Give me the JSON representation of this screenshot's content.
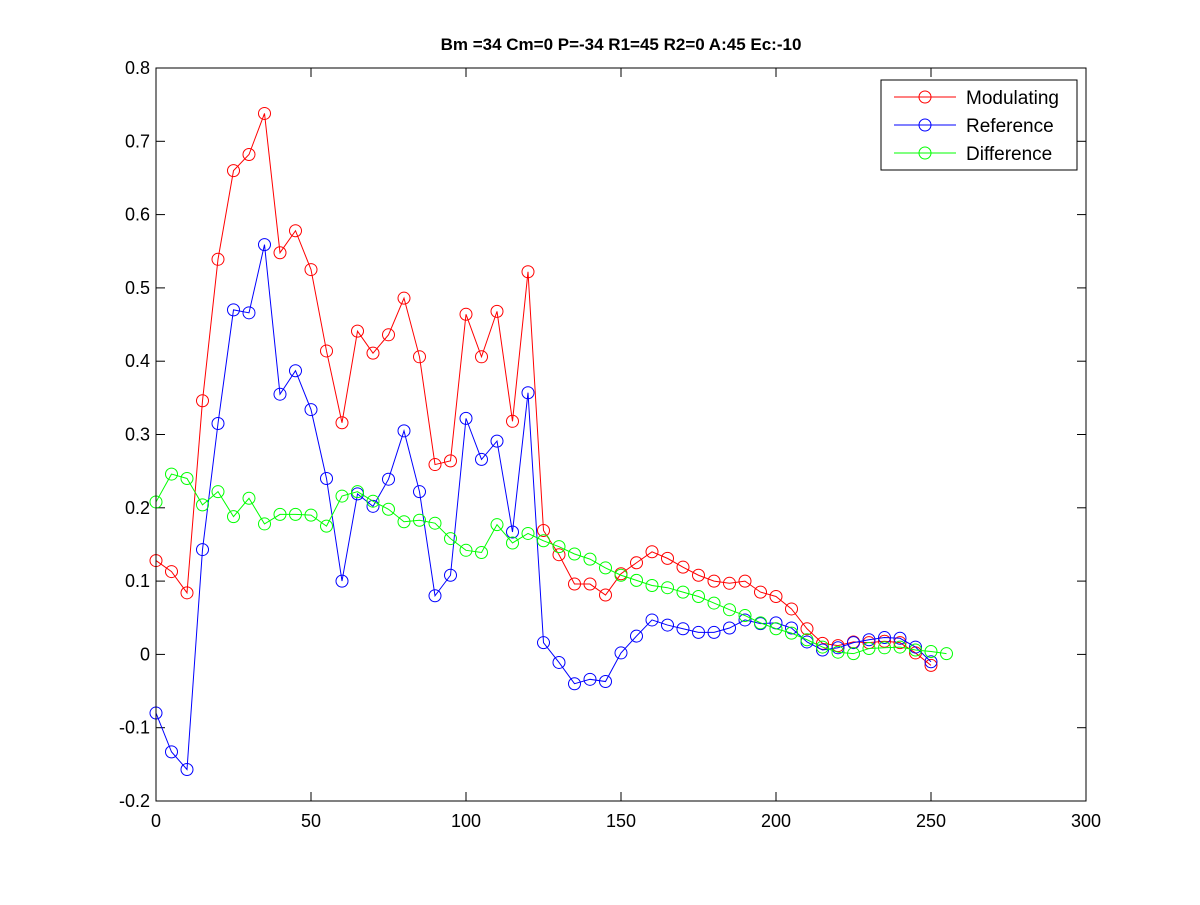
{
  "chart_data": {
    "type": "line",
    "title": "Bm =34  Cm=0  P=-34  R1=45  R2=0  A:45  Ec:-10",
    "xlabel": "",
    "ylabel": "",
    "xlim": [
      0,
      300
    ],
    "ylim": [
      -0.2,
      0.8
    ],
    "x_ticks": [
      0,
      50,
      100,
      150,
      200,
      250,
      300
    ],
    "y_ticks": [
      -0.2,
      -0.1,
      0,
      0.1,
      0.2,
      0.3,
      0.4,
      0.5,
      0.6,
      0.7,
      0.8
    ],
    "x_tick_labels": [
      "0",
      "50",
      "100",
      "150",
      "200",
      "250",
      "300"
    ],
    "y_tick_labels": [
      "-0.2",
      "-0.1",
      "0",
      "0.1",
      "0.2",
      "0.3",
      "0.4",
      "0.5",
      "0.6",
      "0.7",
      "0.8"
    ],
    "grid": false,
    "legend_position": "top-right",
    "marker": "circle",
    "series": [
      {
        "name": "Modulating",
        "color": "#ff0000",
        "x": [
          0,
          5,
          10,
          15,
          20,
          25,
          30,
          35,
          40,
          45,
          50,
          55,
          60,
          65,
          70,
          75,
          80,
          85,
          90,
          95,
          100,
          105,
          110,
          115,
          120,
          125,
          130,
          135,
          140,
          145,
          150,
          155,
          160,
          165,
          170,
          175,
          180,
          185,
          190,
          195,
          200,
          205,
          210,
          215,
          220,
          225,
          230,
          235,
          240,
          245,
          250
        ],
        "y": [
          0.128,
          0.113,
          0.084,
          0.346,
          0.539,
          0.66,
          0.682,
          0.738,
          0.548,
          0.578,
          0.525,
          0.414,
          0.316,
          0.441,
          0.411,
          0.436,
          0.486,
          0.406,
          0.259,
          0.264,
          0.464,
          0.406,
          0.468,
          0.318,
          0.522,
          0.169,
          0.136,
          0.096,
          0.096,
          0.081,
          0.11,
          0.125,
          0.14,
          0.131,
          0.119,
          0.108,
          0.1,
          0.097,
          0.1,
          0.085,
          0.079,
          0.062,
          0.035,
          0.015,
          0.012,
          0.017,
          0.016,
          0.018,
          0.016,
          0.002,
          -0.015
        ]
      },
      {
        "name": "Reference",
        "color": "#0000ff",
        "x": [
          0,
          5,
          10,
          15,
          20,
          25,
          30,
          35,
          40,
          45,
          50,
          55,
          60,
          65,
          70,
          75,
          80,
          85,
          90,
          95,
          100,
          105,
          110,
          115,
          120,
          125,
          130,
          135,
          140,
          145,
          150,
          155,
          160,
          165,
          170,
          175,
          180,
          185,
          190,
          195,
          200,
          205,
          210,
          215,
          220,
          225,
          230,
          235,
          240,
          245,
          250
        ],
        "y": [
          -0.08,
          -0.133,
          -0.157,
          0.143,
          0.315,
          0.47,
          0.466,
          0.559,
          0.355,
          0.387,
          0.334,
          0.24,
          0.1,
          0.219,
          0.202,
          0.239,
          0.305,
          0.222,
          0.08,
          0.108,
          0.322,
          0.266,
          0.291,
          0.167,
          0.357,
          0.016,
          -0.011,
          -0.04,
          -0.034,
          -0.037,
          0.002,
          0.025,
          0.047,
          0.04,
          0.035,
          0.03,
          0.03,
          0.036,
          0.047,
          0.042,
          0.043,
          0.036,
          0.017,
          0.006,
          0.009,
          0.016,
          0.02,
          0.023,
          0.022,
          0.01,
          -0.01
        ]
      },
      {
        "name": "Difference",
        "color": "#00ff00",
        "x": [
          0,
          5,
          10,
          15,
          20,
          25,
          30,
          35,
          40,
          45,
          50,
          55,
          60,
          65,
          70,
          75,
          80,
          85,
          90,
          95,
          100,
          105,
          110,
          115,
          120,
          125,
          130,
          135,
          140,
          145,
          150,
          155,
          160,
          165,
          170,
          175,
          180,
          185,
          190,
          195,
          200,
          205,
          210,
          215,
          220,
          225,
          230,
          235,
          240,
          245,
          250,
          255
        ],
        "y": [
          0.208,
          0.246,
          0.24,
          0.204,
          0.222,
          0.188,
          0.213,
          0.178,
          0.191,
          0.191,
          0.19,
          0.175,
          0.216,
          0.222,
          0.209,
          0.198,
          0.181,
          0.183,
          0.179,
          0.158,
          0.142,
          0.139,
          0.177,
          0.152,
          0.165,
          0.155,
          0.147,
          0.137,
          0.13,
          0.118,
          0.108,
          0.101,
          0.094,
          0.091,
          0.085,
          0.079,
          0.07,
          0.061,
          0.053,
          0.043,
          0.035,
          0.029,
          0.02,
          0.01,
          0.003,
          0.001,
          0.008,
          0.009,
          0.01,
          0.006,
          0.004,
          0.001
        ]
      }
    ]
  }
}
